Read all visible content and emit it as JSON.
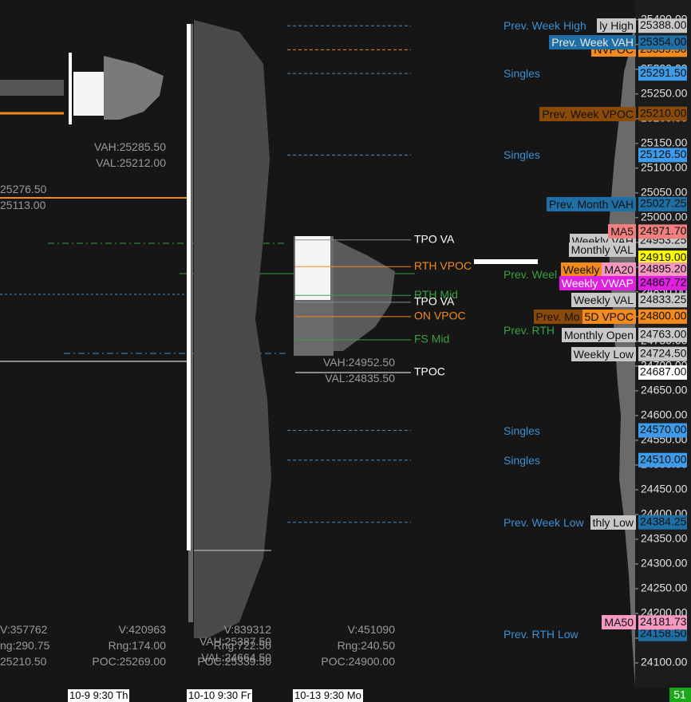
{
  "chart_data": {
    "type": "market-profile",
    "ylim": [
      24050,
      25440
    ],
    "yticks": [
      {
        "value": 24100,
        "label": "24100.00"
      },
      {
        "value": 24150,
        "label": "24150.00"
      },
      {
        "value": 24200,
        "label": "24200.00"
      },
      {
        "value": 24250,
        "label": "24250.00"
      },
      {
        "value": 24300,
        "label": "24300.00"
      },
      {
        "value": 24350,
        "label": "24350.00"
      },
      {
        "value": 24400,
        "label": "24400.00"
      },
      {
        "value": 24450,
        "label": "24450.00"
      },
      {
        "value": 24500,
        "label": "24500.00"
      },
      {
        "value": 24550,
        "label": "24550.00"
      },
      {
        "value": 24600,
        "label": "24600.00"
      },
      {
        "value": 24650,
        "label": "24650.00"
      },
      {
        "value": 24700,
        "label": "24700.00"
      },
      {
        "value": 24750,
        "label": "24750.00"
      },
      {
        "value": 24800,
        "label": "24800.00"
      },
      {
        "value": 24850,
        "label": "24850.00"
      },
      {
        "value": 24900,
        "label": "24900.00"
      },
      {
        "value": 24950,
        "label": "24950.00"
      },
      {
        "value": 25000,
        "label": "25000.00"
      },
      {
        "value": 25050,
        "label": "25050.00"
      },
      {
        "value": 25100,
        "label": "25100.00"
      },
      {
        "value": 25150,
        "label": "25150.00"
      },
      {
        "value": 25200,
        "label": "25200.00"
      },
      {
        "value": 25250,
        "label": "25250.00"
      },
      {
        "value": 25300,
        "label": "25300.00"
      },
      {
        "value": 25350,
        "label": "25350.00"
      },
      {
        "value": 25400,
        "label": "25400.00"
      }
    ],
    "levels": [
      {
        "value": 25388,
        "value_label": "25388.00",
        "tag": "#c8c8c8",
        "line": "#3d8fd1",
        "labels": [
          {
            "text": "Prev. Week High",
            "color": "#3d8fd1"
          },
          {
            "text": "ly High",
            "color": "#111111",
            "background": "#c8c8c8"
          }
        ]
      },
      {
        "value": 25339.5,
        "value_label": "25339.50",
        "tag": "#f28a1e",
        "line": "#f28a1e",
        "labels": [
          {
            "text": "NVPOC",
            "color": "#111111",
            "background": "#f28a1e"
          }
        ]
      },
      {
        "value": 25354,
        "value_label": "25354.00",
        "tag": "#1f6fa5",
        "labels": [
          {
            "text": "Prev. Week VAH",
            "color": "#e8e8e8",
            "background": "#1f6fa5"
          }
        ]
      },
      {
        "value": 25291.5,
        "value_label": "25291.50",
        "tag": "#3d9be9",
        "line": "#3d8fd1",
        "labels": [
          {
            "text": "Singles",
            "color": "#3d8fd1"
          }
        ]
      },
      {
        "value": 25210,
        "value_label": "25210.00",
        "tag": "#8b4a0a",
        "labels": [
          {
            "text": "Prev. Week VPOC",
            "color": "#111111",
            "background": "#8b4a0a"
          }
        ]
      },
      {
        "value": 25126.5,
        "value_label": "25126.50",
        "tag": "#3d9be9",
        "line": "#3d8fd1",
        "labels": [
          {
            "text": "Singles",
            "color": "#3d8fd1"
          }
        ]
      },
      {
        "value": 25027.25,
        "value_label": "25027.25",
        "tag": "#1f6fa5",
        "labels": [
          {
            "text": "Prev. Month VAH",
            "color": "#111111",
            "background": "#1f6fa5"
          }
        ]
      },
      {
        "value": 24953.25,
        "value_label": "24953.25",
        "tag": "#c8c8c8",
        "labels": [
          {
            "text": "Weekly VAH",
            "color": "#111111",
            "background": "#c8c8c8"
          }
        ]
      },
      {
        "value": 24971.7,
        "value_label": "24971.70",
        "tag": "#f08080",
        "labels": [
          {
            "text": "MA5",
            "color": "#111111",
            "background": "#f08080"
          }
        ]
      },
      {
        "value": 24935,
        "labels": [
          {
            "text": "Monthly VAL",
            "color": "#111111",
            "background": "#c8c8c8"
          }
        ]
      },
      {
        "value": 24919,
        "value_label": "24919.00",
        "tag": "#ffff00",
        "labels": []
      },
      {
        "value": 24885,
        "labels": [
          {
            "text": "Prev. Weel",
            "color": "#3aa040"
          }
        ]
      },
      {
        "value": 24895.2,
        "value_label": "24895.20",
        "tag": "#f49ac1",
        "labels": [
          {
            "text": "MA20",
            "color": "#111111",
            "background": "#f49ac1"
          },
          {
            "text": "Weekly",
            "color": "#111111",
            "background": "#f28a1e"
          }
        ]
      },
      {
        "value": 24867.72,
        "value_label": "24867.72",
        "tag": "#e020e0",
        "labels": [
          {
            "text": "Weekly VWAP",
            "color": "#ffffff",
            "background": "#e020e0"
          }
        ]
      },
      {
        "value": 24833.25,
        "value_label": "24833.25",
        "tag": "#c8c8c8",
        "labels": [
          {
            "text": "Weekly VAL",
            "color": "#111111",
            "background": "#c8c8c8"
          }
        ]
      },
      {
        "value": 24800,
        "value_label": "24800.00",
        "tag": "#f28a1e",
        "labels": [
          {
            "text": "5D VPOC",
            "color": "#111111",
            "background": "#f28a1e"
          },
          {
            "text": "Prev. Mo",
            "color": "#111111",
            "background": "#8b4a0a"
          }
        ]
      },
      {
        "value": 24772,
        "labels": [
          {
            "text": "Prev. RTH",
            "color": "#3aa040"
          }
        ]
      },
      {
        "value": 24763,
        "value_label": "24763.00",
        "tag": "#c8c8c8",
        "labels": [
          {
            "text": "Monthly Open",
            "color": "#111111",
            "background": "#c8c8c8"
          }
        ]
      },
      {
        "value": 24724.5,
        "value_label": "24724.50",
        "tag": "#c8c8c8",
        "labels": [
          {
            "text": "Weekly Low",
            "color": "#111111",
            "background": "#c8c8c8"
          }
        ]
      },
      {
        "value": 24687,
        "value_label": "24687.00",
        "tag": "#ffffff",
        "labels": []
      },
      {
        "value": 24570,
        "value_label": "24570.00",
        "tag": "#3d9be9",
        "line": "#3d8fd1",
        "labels": [
          {
            "text": "Singles",
            "color": "#3d8fd1"
          }
        ]
      },
      {
        "value": 24510,
        "value_label": "24510.00",
        "tag": "#3d9be9",
        "line": "#3d8fd1",
        "labels": [
          {
            "text": "Singles",
            "color": "#3d8fd1"
          }
        ]
      },
      {
        "value": 24384.25,
        "value_label": "24384.25",
        "tag": "#1f6fa5",
        "line": "#3d8fd1",
        "labels": [
          {
            "text": "Prev. Week Low",
            "color": "#3d8fd1"
          },
          {
            "text": "thly Low",
            "color": "#111111",
            "background": "#c8c8c8"
          }
        ]
      },
      {
        "value": 24158.5,
        "value_label": "24158.50",
        "tag": "#1f6fa5",
        "labels": [
          {
            "text": "Prev. RTH Low",
            "color": "#3d8fd1"
          }
        ]
      },
      {
        "value": 24181.73,
        "value_label": "24181.73",
        "tag": "#f49ac1",
        "labels": [
          {
            "text": "MA50",
            "color": "#111111",
            "background": "#f49ac1"
          }
        ]
      }
    ],
    "annotations": [
      {
        "text": "TPO VA",
        "value": 24955,
        "color": "#ffffff",
        "line": "#8a8a8a"
      },
      {
        "text": "RTH VPOC",
        "value": 24901,
        "color": "#f28a1e",
        "line": "#f28a1e"
      },
      {
        "text": "RTH Mid",
        "value": 24843,
        "color": "#3aa040",
        "line": "#3aa040"
      },
      {
        "text": "TPO VA",
        "value": 24829,
        "color": "#ffffff",
        "line": "#8a8a8a"
      },
      {
        "text": "ON VPOC",
        "value": 24800,
        "color": "#f28a1e",
        "line": "#f28a1e"
      },
      {
        "text": "FS Mid",
        "value": 24753,
        "color": "#3aa040",
        "line": "#3aa040"
      },
      {
        "text": "TPOC",
        "value": 24687,
        "color": "#ffffff",
        "line": "#ffffff"
      }
    ],
    "sessions": [
      {
        "value_area": [
          "25276.50",
          "25113.00"
        ],
        "stats": [
          "V:357762",
          "ng:290.75",
          "25210.50"
        ]
      },
      {
        "date": "10-9  9:30 Th",
        "value_area": [
          "VAH:25285.50",
          "VAL:25212.00"
        ],
        "stats": [
          "V:420963",
          "Rng:174.00",
          "POC:25269.00"
        ]
      },
      {
        "date": "10-10  9:30 Fr",
        "stats": [
          "V:839312",
          "Rng:722.50",
          "VAH:25387.50",
          "VAL:24664.50",
          "POC:25339.50"
        ]
      },
      {
        "date": "10-13  9:30 Mo",
        "value_area": [
          "VAH:24952.50",
          "VAL:24835.50"
        ],
        "stats": [
          "V:451090",
          "Rng:240.50",
          "POC:24900.00"
        ]
      }
    ],
    "status": "51"
  }
}
